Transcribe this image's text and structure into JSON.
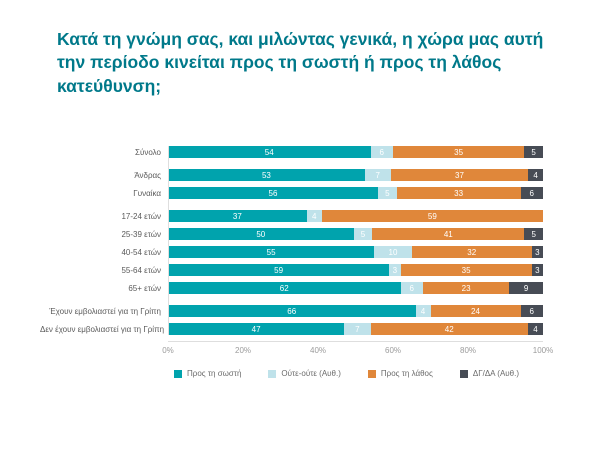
{
  "title": "Κατά τη γνώμη σας, και μιλώντας γενικά, η χώρα μας αυτή την περίοδο κινείται προς τη σωστή ή προς τη λάθος κατεύθυνση;",
  "colors": {
    "title": "#00798A",
    "axis_line": "#dedede",
    "tick_text": "#9b9b9b"
  },
  "chart_data": {
    "type": "bar",
    "orientation": "horizontal",
    "stacked": true,
    "xlim": [
      0,
      100
    ],
    "x_ticks": [
      "0%",
      "20%",
      "40%",
      "60%",
      "80%",
      "100%"
    ],
    "grid": false,
    "legend_position": "bottom",
    "series": [
      {
        "name": "Προς τη σωστή",
        "color": "#00A3AD"
      },
      {
        "name": "Ούτε-ούτε (Αυθ.)",
        "color": "#BFE2EA"
      },
      {
        "name": "Προς τη λάθος",
        "color": "#E0873A"
      },
      {
        "name": "ΔΓ/ΔΑ (Αυθ.)",
        "color": "#474C55"
      }
    ],
    "rows": [
      {
        "label": "Σύνολο",
        "group": 0,
        "values": [
          54,
          6,
          35,
          5
        ]
      },
      {
        "label": "Άνδρας",
        "group": 1,
        "values": [
          53,
          7,
          37,
          4
        ]
      },
      {
        "label": "Γυναίκα",
        "group": 1,
        "values": [
          56,
          5,
          33,
          6
        ]
      },
      {
        "label": "17-24 ετών",
        "group": 2,
        "values": [
          37,
          4,
          59,
          0
        ]
      },
      {
        "label": "25-39 ετών",
        "group": 2,
        "values": [
          50,
          5,
          41,
          5
        ]
      },
      {
        "label": "40-54 ετών",
        "group": 2,
        "values": [
          55,
          10,
          32,
          3
        ]
      },
      {
        "label": "55-64 ετών",
        "group": 2,
        "values": [
          59,
          3,
          35,
          3
        ]
      },
      {
        "label": "65+ ετών",
        "group": 2,
        "values": [
          62,
          6,
          23,
          9
        ]
      },
      {
        "label": "Έχουν εμβολιαστεί για τη Γρίπη",
        "group": 3,
        "values": [
          66,
          4,
          24,
          6
        ]
      },
      {
        "label": "Δεν έχουν εμβολιαστεί για τη Γρίπη",
        "group": 3,
        "values": [
          47,
          7,
          42,
          4
        ]
      }
    ]
  }
}
